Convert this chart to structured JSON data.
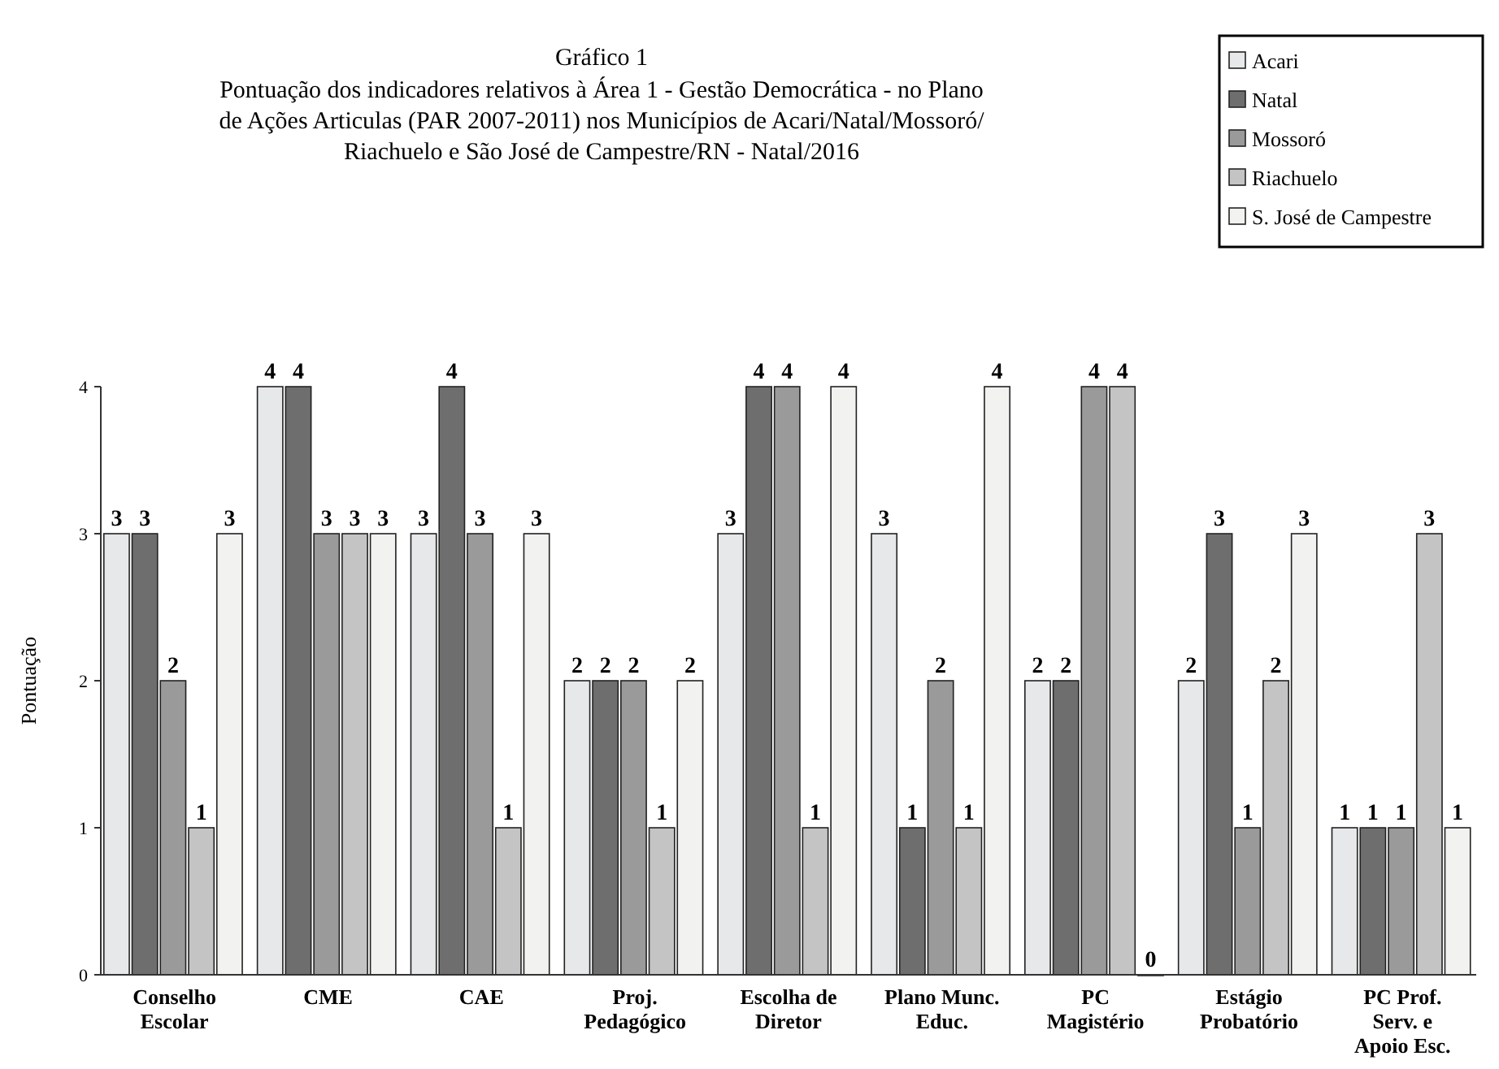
{
  "chart_data": {
    "type": "bar",
    "title": "Gráfico 1",
    "subtitle": "Pontuação dos indicadores relativos à Área 1 - Gestão Democrática - no Plano\nde Ações Articulas (PAR 2007-2011) nos Municípios de Acari/Natal/Mossoró/\nRiachuelo e São José de Campestre/RN - Natal/2016",
    "ylabel": "Pontuação",
    "categories": [
      "Conselho Escolar",
      "CME",
      "CAE",
      "Proj. Pedagógico",
      "Escolha de Diretor",
      "Plano Munc. Educ.",
      "PC Magistério",
      "Estágio Probatório",
      "PC Prof. Serv. e Apoio Esc."
    ],
    "series": [
      {
        "name": "Acari",
        "color": "#e6e8ea",
        "values": [
          3,
          4,
          3,
          2,
          3,
          3,
          2,
          2,
          1
        ]
      },
      {
        "name": "Natal",
        "color": "#6e6e6e",
        "values": [
          3,
          4,
          4,
          2,
          4,
          1,
          2,
          3,
          1
        ]
      },
      {
        "name": "Mossoró",
        "color": "#9a9a9a",
        "values": [
          2,
          3,
          3,
          2,
          4,
          2,
          4,
          1,
          1
        ]
      },
      {
        "name": "Riachuelo",
        "color": "#c4c4c4",
        "values": [
          1,
          3,
          1,
          1,
          1,
          1,
          4,
          2,
          3
        ]
      },
      {
        "name": "S. José de Campestre",
        "color": "#f2f2f0",
        "values": [
          3,
          3,
          3,
          2,
          4,
          4,
          0,
          3,
          1
        ]
      }
    ],
    "ylim": [
      0,
      4
    ],
    "yticks": [
      0,
      1,
      2,
      3,
      4
    ],
    "grid": false,
    "legend": "top right",
    "data_labels": true
  }
}
